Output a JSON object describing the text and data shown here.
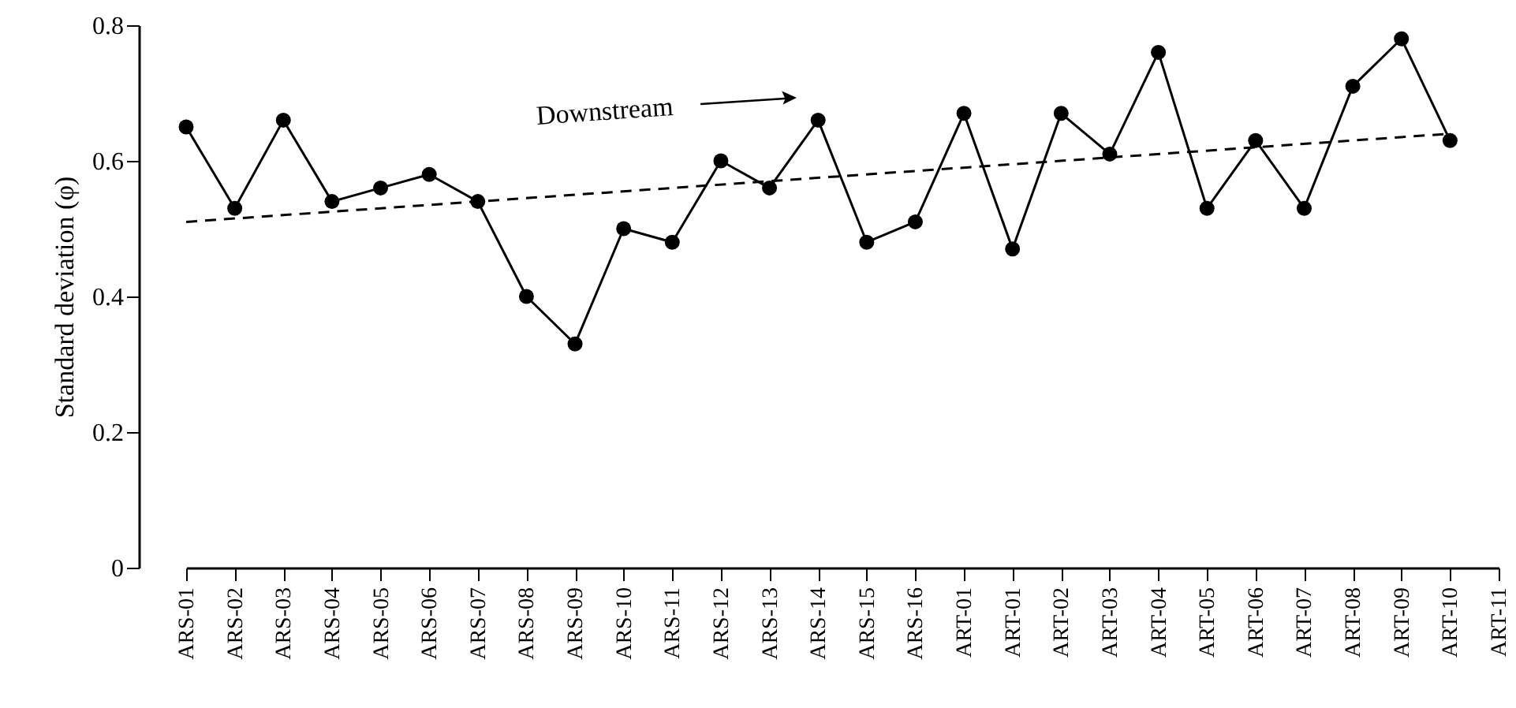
{
  "chart_data": {
    "type": "line",
    "ylabel": "Standard deviation (φ)",
    "categories": [
      "ARS-01",
      "ARS-02",
      "ARS-03",
      "ARS-04",
      "ARS-05",
      "ARS-06",
      "ARS-07",
      "ARS-08",
      "ARS-09",
      "ARS-10",
      "ARS-11",
      "ARS-12",
      "ARS-13",
      "ARS-14",
      "ARS-15",
      "ARS-16",
      "ART-01",
      "ART-01",
      "ART-02",
      "ART-03",
      "ART-04",
      "ART-05",
      "ART-06",
      "ART-07",
      "ART-08",
      "ART-09",
      "ART-10",
      "ART-11"
    ],
    "series": [
      {
        "color": "#000000",
        "marker": "circle",
        "line_style": "solid",
        "values": [
          0.65,
          0.53,
          0.66,
          0.54,
          0.56,
          0.58,
          0.54,
          0.4,
          0.33,
          0.5,
          0.48,
          0.6,
          0.56,
          0.66,
          0.48,
          0.51,
          0.67,
          0.47,
          0.67,
          0.61,
          0.76,
          0.53,
          0.63,
          0.53,
          0.71,
          0.78,
          0.63,
          null
        ]
      },
      {
        "type": "line",
        "color": "#000000",
        "marker": "none",
        "line_style": "dashed",
        "x": [
          "ARS-01",
          "ART-10"
        ],
        "values": [
          0.51,
          0.64
        ]
      }
    ],
    "ylim": [
      0,
      0.8
    ],
    "yticks": [
      0,
      0.2,
      0.4,
      0.6,
      0.8
    ],
    "grid": false,
    "annotations": [
      "Downstream"
    ]
  }
}
